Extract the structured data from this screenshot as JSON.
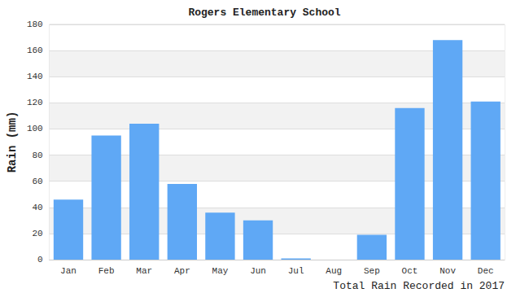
{
  "chart_data": {
    "type": "bar",
    "title": "Rogers Elementary School",
    "y_label": "Rain (mm)",
    "annotations": [
      "Total Rain Recorded in 2017"
    ],
    "categories": [
      "Jan",
      "Feb",
      "Mar",
      "Apr",
      "May",
      "Jun",
      "Jul",
      "Aug",
      "Sep",
      "Oct",
      "Nov",
      "Dec"
    ],
    "values": [
      46,
      95,
      104,
      58,
      36,
      30,
      1,
      0,
      19,
      116,
      168,
      121
    ],
    "color": "#5fa8f5",
    "ylim": [
      0,
      180
    ],
    "yticks": [
      0,
      20,
      40,
      60,
      80,
      100,
      120,
      140,
      160,
      180
    ],
    "grid": true
  }
}
